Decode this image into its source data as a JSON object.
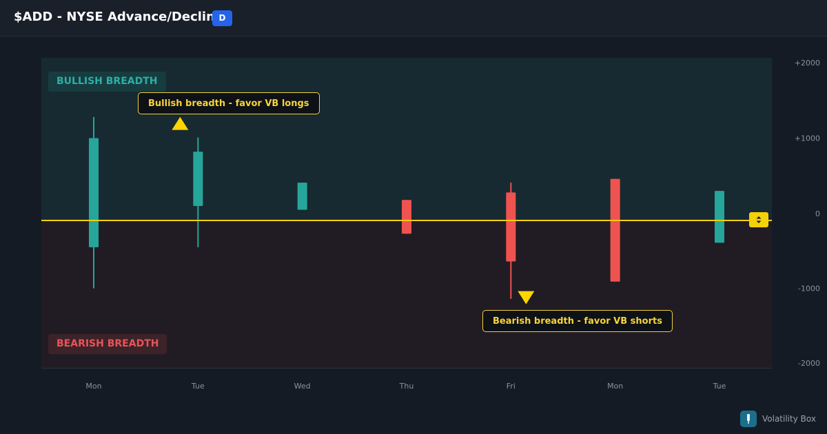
{
  "header": {
    "title": "$ADD - NYSE Advance/Decline",
    "timeframe": "D"
  },
  "zones": {
    "bullish_label": "BULLISH BREADTH",
    "bearish_label": "BEARISH BREADTH"
  },
  "annotations": {
    "bullish_callout": "Bullish breadth - favor VB longs",
    "bearish_callout": "Bearish breadth - favor VB shorts"
  },
  "colors": {
    "up": "#26a69a",
    "down": "#ef5350",
    "zero_line": "#f5d10a",
    "bullish_zone": "#172a31",
    "bearish_zone": "#211c23",
    "signal": "#ffd400",
    "accent": "#2563eb"
  },
  "price_tag_icon": "up-down-arrows-icon",
  "brand": {
    "name": "Volatility Box",
    "icon": "brand-logo-icon"
  },
  "chart_data": {
    "type": "candlestick",
    "y_ticks": [
      {
        "value": 2000,
        "label": "+2000"
      },
      {
        "value": 1000,
        "label": "+1000"
      },
      {
        "value": 0,
        "label": "0"
      },
      {
        "value": -1000,
        "label": "-1000"
      },
      {
        "value": -2000,
        "label": "-2000"
      }
    ],
    "ylim": [
      -2050,
      2100
    ],
    "zero_line": 0,
    "candles": [
      {
        "label": "Mon",
        "open": -450,
        "close": 1000,
        "high": 1280,
        "low": -1000,
        "direction": "up"
      },
      {
        "label": "Tue",
        "open": 100,
        "close": 820,
        "high": 1010,
        "low": -450,
        "direction": "up"
      },
      {
        "label": "Wed",
        "open": 50,
        "close": 410,
        "high": 410,
        "low": 50,
        "direction": "up"
      },
      {
        "label": "Thu",
        "open": 180,
        "close": -270,
        "high": 180,
        "low": -270,
        "direction": "down"
      },
      {
        "label": "Fri",
        "open": 280,
        "close": -640,
        "high": 410,
        "low": -1140,
        "direction": "down"
      },
      {
        "label": "Mon",
        "open": 460,
        "close": -910,
        "high": 460,
        "low": -910,
        "direction": "down"
      },
      {
        "label": "Tue",
        "open": -390,
        "close": 300,
        "high": 300,
        "low": -390,
        "direction": "up"
      }
    ],
    "signals": [
      {
        "candle_index": 1,
        "value": 1200,
        "direction": "up"
      },
      {
        "candle_index": 4,
        "value": -1130,
        "direction": "down"
      }
    ]
  }
}
